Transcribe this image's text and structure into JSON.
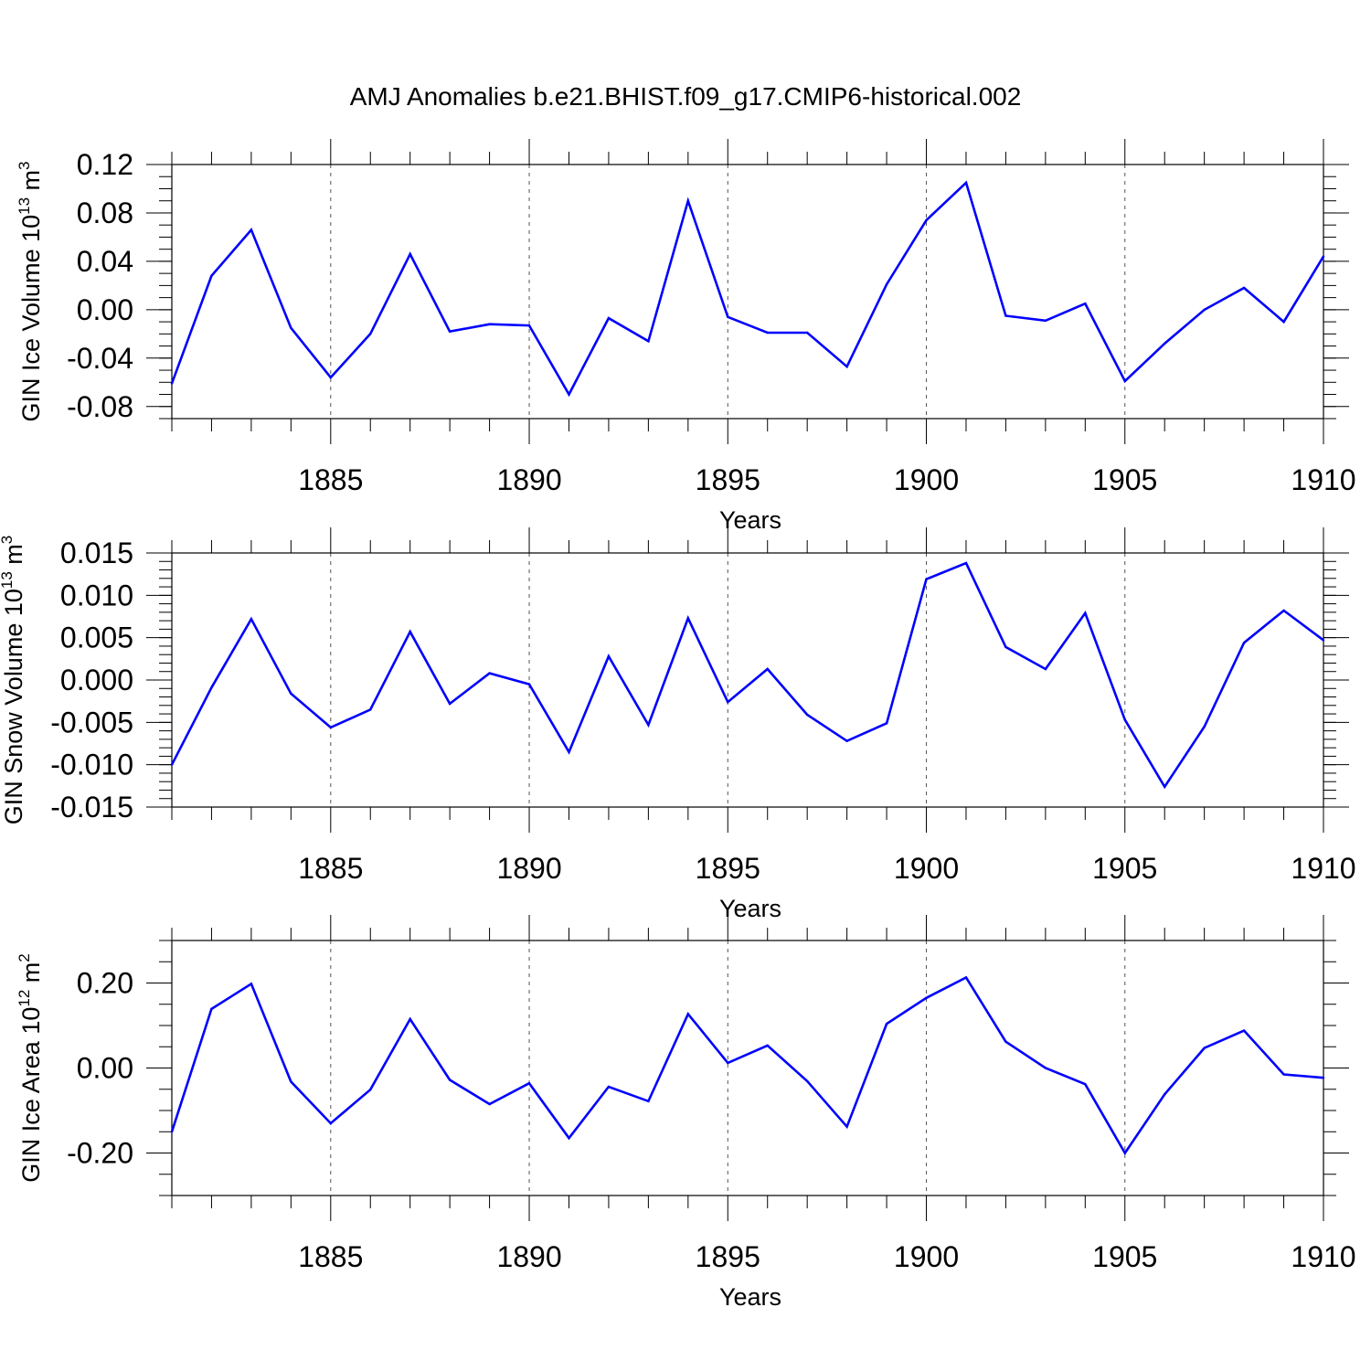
{
  "title": "AMJ Anomalies b.e21.BHIST.f09_g17.CMIP6-historical.002",
  "colors": {
    "line": "#0000ff",
    "axis": "#000000",
    "grid": "#555555",
    "background": "#ffffff"
  },
  "chart_data": [
    {
      "type": "line",
      "title": "AMJ Anomalies b.e21.BHIST.f09_g17.CMIP6-historical.002",
      "xlabel": "Years",
      "ylabel_main": "GIN Ice Volume 10",
      "ylabel_exp": "13",
      "ylabel_unit": " m",
      "ylabel_unit_exp": "3",
      "xlim": [
        1881,
        1910
      ],
      "ylim": [
        -0.09,
        0.12
      ],
      "x_ticks": [
        1885,
        1890,
        1895,
        1900,
        1905,
        1910
      ],
      "x_tick_labels": [
        "1885",
        "1890",
        "1895",
        "1900",
        "1905",
        "1910"
      ],
      "y_ticks": [
        -0.08,
        -0.04,
        0.0,
        0.04,
        0.08,
        0.12
      ],
      "y_tick_labels": [
        "-0.08",
        "-0.04",
        "0.00",
        "0.04",
        "0.08",
        "0.12"
      ],
      "y_minor_step": 0.01,
      "grid": "vertical dashed at major x ticks",
      "series": [
        {
          "name": "GIN Ice Volume",
          "x": [
            1881,
            1882,
            1883,
            1884,
            1885,
            1886,
            1887,
            1888,
            1889,
            1890,
            1891,
            1892,
            1893,
            1894,
            1895,
            1896,
            1897,
            1898,
            1899,
            1900,
            1901,
            1902,
            1903,
            1904,
            1905,
            1906,
            1907,
            1908,
            1909,
            1910
          ],
          "values": [
            -0.061,
            0.028,
            0.066,
            -0.015,
            -0.056,
            -0.02,
            0.046,
            -0.018,
            -0.012,
            -0.013,
            -0.07,
            -0.007,
            -0.026,
            0.09,
            -0.006,
            -0.019,
            -0.019,
            -0.047,
            0.021,
            0.074,
            0.105,
            -0.005,
            -0.009,
            0.005,
            -0.059,
            -0.028,
            0.0,
            0.018,
            -0.01,
            0.044
          ]
        }
      ]
    },
    {
      "type": "line",
      "xlabel": "Years",
      "ylabel_main": "GIN Snow Volume 10",
      "ylabel_exp": "13",
      "ylabel_unit": " m",
      "ylabel_unit_exp": "3",
      "xlim": [
        1881,
        1910
      ],
      "ylim": [
        -0.015,
        0.015
      ],
      "x_ticks": [
        1885,
        1890,
        1895,
        1900,
        1905,
        1910
      ],
      "x_tick_labels": [
        "1885",
        "1890",
        "1895",
        "1900",
        "1905",
        "1910"
      ],
      "y_ticks": [
        -0.015,
        -0.01,
        -0.005,
        0.0,
        0.005,
        0.01,
        0.015
      ],
      "y_tick_labels": [
        "-0.015",
        "-0.010",
        "-0.005",
        "0.000",
        "0.005",
        "0.010",
        "0.015"
      ],
      "y_minor_step": 0.001,
      "grid": "vertical dashed at major x ticks",
      "series": [
        {
          "name": "GIN Snow Volume",
          "x": [
            1881,
            1882,
            1883,
            1884,
            1885,
            1886,
            1887,
            1888,
            1889,
            1890,
            1891,
            1892,
            1893,
            1894,
            1895,
            1896,
            1897,
            1898,
            1899,
            1900,
            1901,
            1902,
            1903,
            1904,
            1905,
            1906,
            1907,
            1908,
            1909,
            1910
          ],
          "values": [
            -0.01,
            -0.0009,
            0.0072,
            -0.0016,
            -0.0056,
            -0.0035,
            0.0057,
            -0.0028,
            0.0008,
            -0.0005,
            -0.0085,
            0.0028,
            -0.0053,
            0.0073,
            -0.0026,
            0.0013,
            -0.0041,
            -0.0072,
            -0.0051,
            0.0119,
            0.0138,
            0.0039,
            0.0013,
            0.0079,
            -0.0047,
            -0.0126,
            -0.0055,
            0.0044,
            0.0082,
            0.0047
          ]
        }
      ]
    },
    {
      "type": "line",
      "xlabel": "Years",
      "ylabel_main": "GIN Ice Area 10",
      "ylabel_exp": "12",
      "ylabel_unit": " m",
      "ylabel_unit_exp": "2",
      "xlim": [
        1881,
        1910
      ],
      "ylim": [
        -0.3,
        0.3
      ],
      "x_ticks": [
        1885,
        1890,
        1895,
        1900,
        1905,
        1910
      ],
      "x_tick_labels": [
        "1885",
        "1890",
        "1895",
        "1900",
        "1905",
        "1910"
      ],
      "y_ticks": [
        -0.2,
        0.0,
        0.2
      ],
      "y_tick_labels": [
        "-0.20",
        "0.00",
        "0.20"
      ],
      "y_minor_step": 0.05,
      "grid": "vertical dashed at major x ticks",
      "series": [
        {
          "name": "GIN Ice Area",
          "x": [
            1881,
            1882,
            1883,
            1884,
            1885,
            1886,
            1887,
            1888,
            1889,
            1890,
            1891,
            1892,
            1893,
            1894,
            1895,
            1896,
            1897,
            1898,
            1899,
            1900,
            1901,
            1902,
            1903,
            1904,
            1905,
            1906,
            1907,
            1908,
            1909,
            1910
          ],
          "values": [
            -0.15,
            0.139,
            0.198,
            -0.032,
            -0.13,
            -0.051,
            0.115,
            -0.028,
            -0.085,
            -0.036,
            -0.165,
            -0.044,
            -0.078,
            0.127,
            0.012,
            0.053,
            -0.031,
            -0.138,
            0.104,
            0.165,
            0.213,
            0.062,
            0.0,
            -0.038,
            -0.2,
            -0.062,
            0.047,
            0.088,
            -0.015,
            -0.023
          ]
        }
      ]
    }
  ]
}
